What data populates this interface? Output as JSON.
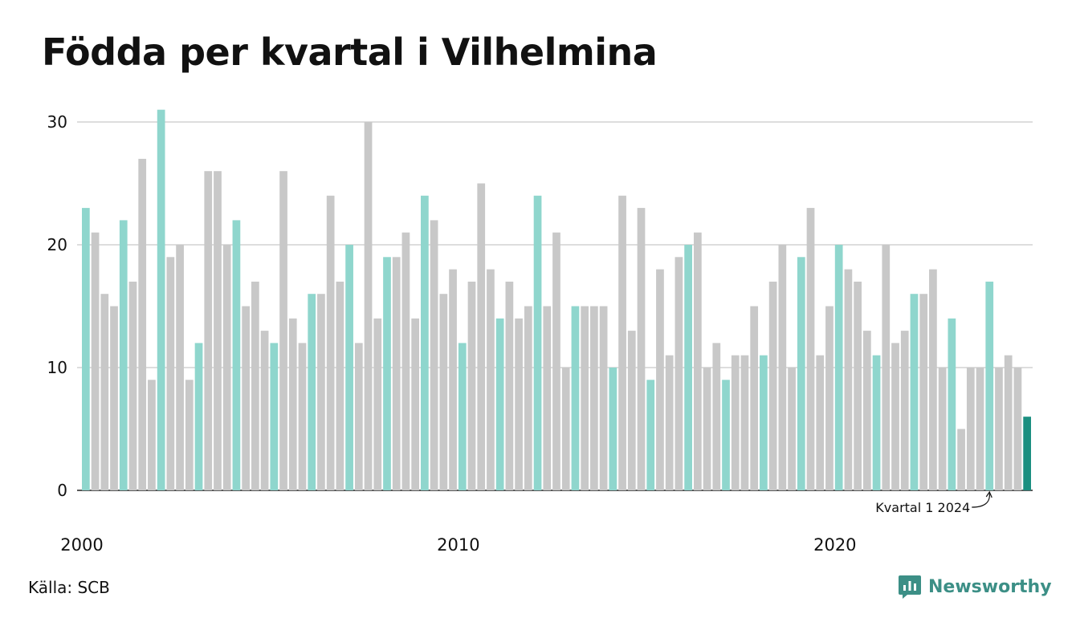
{
  "source": "Källa: SCB",
  "brand": {
    "name": "Newsworthy",
    "icon": "newsworthy-logo-icon"
  },
  "colors": {
    "highlight": "#8fd6cd",
    "other": "#c8c8c8",
    "latest": "#1b8f80",
    "grid": "#dddddd"
  },
  "chart_data": {
    "type": "bar",
    "title": "Födda per kvartal i Vilhelmina",
    "xlabel": "",
    "ylabel": "",
    "ylim": [
      0,
      31
    ],
    "yticks": [
      0,
      10,
      20,
      30
    ],
    "xtick_labels": [
      "2000",
      "2010",
      "2020"
    ],
    "xtick_years": [
      2000,
      2010,
      2020
    ],
    "start_year": 2000,
    "grid": true,
    "highlight_quarter": 1,
    "annotation": {
      "text": "Kvartal 1 2024",
      "year": 2024,
      "quarter": 1
    },
    "categories": [
      "2000 K1",
      "2000 K2",
      "2000 K3",
      "2000 K4",
      "2001 K1",
      "2001 K2",
      "2001 K3",
      "2001 K4",
      "2002 K1",
      "2002 K2",
      "2002 K3",
      "2002 K4",
      "2003 K1",
      "2003 K2",
      "2003 K3",
      "2003 K4",
      "2004 K1",
      "2004 K2",
      "2004 K3",
      "2004 K4",
      "2005 K1",
      "2005 K2",
      "2005 K3",
      "2005 K4",
      "2006 K1",
      "2006 K2",
      "2006 K3",
      "2006 K4",
      "2007 K1",
      "2007 K2",
      "2007 K3",
      "2007 K4",
      "2008 K1",
      "2008 K2",
      "2008 K3",
      "2008 K4",
      "2009 K1",
      "2009 K2",
      "2009 K3",
      "2009 K4",
      "2010 K1",
      "2010 K2",
      "2010 K3",
      "2010 K4",
      "2011 K1",
      "2011 K2",
      "2011 K3",
      "2011 K4",
      "2012 K1",
      "2012 K2",
      "2012 K3",
      "2012 K4",
      "2013 K1",
      "2013 K2",
      "2013 K3",
      "2013 K4",
      "2014 K1",
      "2014 K2",
      "2014 K3",
      "2014 K4",
      "2015 K1",
      "2015 K2",
      "2015 K3",
      "2015 K4",
      "2016 K1",
      "2016 K2",
      "2016 K3",
      "2016 K4",
      "2017 K1",
      "2017 K2",
      "2017 K3",
      "2017 K4",
      "2018 K1",
      "2018 K2",
      "2018 K3",
      "2018 K4",
      "2019 K1",
      "2019 K2",
      "2019 K3",
      "2019 K4",
      "2020 K1",
      "2020 K2",
      "2020 K3",
      "2020 K4",
      "2021 K1",
      "2021 K2",
      "2021 K3",
      "2021 K4",
      "2022 K1",
      "2022 K2",
      "2022 K3",
      "2022 K4",
      "2023 K1",
      "2023 K2",
      "2023 K3",
      "2023 K4",
      "2024 K1",
      "2024 K2",
      "2024 K3",
      "2024 K4",
      "2025 K1"
    ],
    "values": [
      23,
      21,
      16,
      15,
      22,
      17,
      27,
      9,
      31,
      19,
      20,
      9,
      12,
      26,
      26,
      20,
      22,
      15,
      17,
      13,
      12,
      26,
      14,
      12,
      16,
      16,
      24,
      17,
      20,
      12,
      30,
      14,
      19,
      19,
      21,
      14,
      24,
      22,
      16,
      18,
      12,
      17,
      25,
      18,
      14,
      17,
      14,
      15,
      24,
      15,
      21,
      10,
      15,
      15,
      15,
      15,
      10,
      24,
      13,
      23,
      9,
      18,
      11,
      19,
      20,
      21,
      10,
      12,
      9,
      11,
      11,
      15,
      11,
      17,
      20,
      10,
      19,
      23,
      11,
      15,
      20,
      18,
      17,
      13,
      11,
      20,
      12,
      13,
      16,
      16,
      18,
      10,
      14,
      5,
      10,
      10,
      17,
      10,
      11,
      10,
      6
    ]
  }
}
